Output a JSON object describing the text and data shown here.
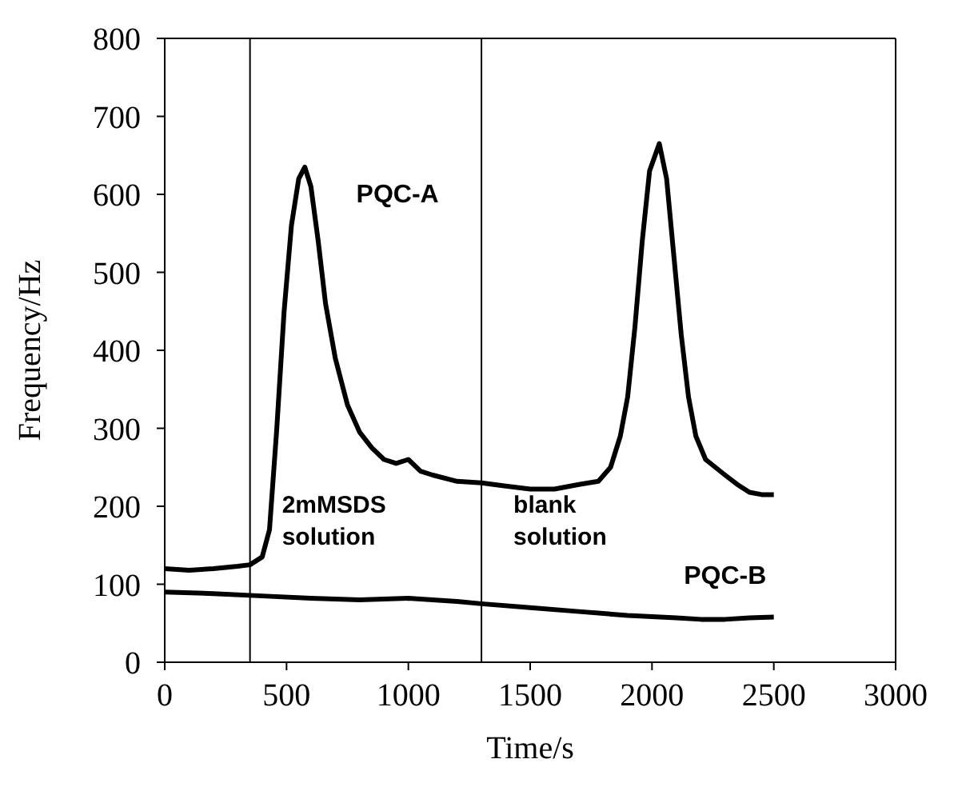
{
  "chart_data": {
    "type": "line",
    "xlabel": "Time/s",
    "ylabel": "Frequency/Hz",
    "xlim": [
      0,
      3000
    ],
    "xticks": [
      0,
      500,
      1000,
      1500,
      2000,
      2500,
      3000
    ],
    "ylim": [
      0,
      800
    ],
    "yticks": [
      0,
      100,
      200,
      300,
      400,
      500,
      600,
      700,
      800
    ],
    "grid": false,
    "legend": false,
    "marker": "none",
    "line_style": "solid",
    "series": [
      {
        "name": "PQC-A",
        "color": "#000000",
        "x": [
          0,
          100,
          200,
          300,
          350,
          400,
          430,
          460,
          490,
          520,
          550,
          575,
          600,
          630,
          660,
          700,
          750,
          800,
          850,
          900,
          950,
          1000,
          1050,
          1100,
          1200,
          1300,
          1400,
          1500,
          1600,
          1700,
          1780,
          1830,
          1870,
          1900,
          1930,
          1960,
          1990,
          2030,
          2060,
          2090,
          2120,
          2150,
          2180,
          2220,
          2260,
          2300,
          2350,
          2400,
          2450,
          2500
        ],
        "values": [
          120,
          118,
          120,
          123,
          125,
          135,
          170,
          300,
          450,
          560,
          620,
          635,
          610,
          540,
          460,
          390,
          330,
          295,
          275,
          260,
          255,
          260,
          245,
          240,
          232,
          230,
          226,
          222,
          222,
          228,
          232,
          250,
          290,
          340,
          430,
          540,
          630,
          665,
          620,
          520,
          420,
          340,
          290,
          260,
          250,
          240,
          228,
          218,
          215,
          215
        ]
      },
      {
        "name": "PQC-B",
        "color": "#000000",
        "x": [
          0,
          200,
          400,
          600,
          800,
          1000,
          1200,
          1300,
          1500,
          1700,
          1900,
          2100,
          2200,
          2300,
          2400,
          2500
        ],
        "values": [
          90,
          88,
          85,
          82,
          80,
          82,
          78,
          75,
          70,
          65,
          60,
          57,
          55,
          55,
          57,
          58
        ]
      }
    ],
    "ref_lines": [
      {
        "axis": "x",
        "value": 350,
        "label": "2mMSDS solution"
      },
      {
        "axis": "x",
        "value": 1300,
        "label": "blank solution"
      }
    ]
  }
}
